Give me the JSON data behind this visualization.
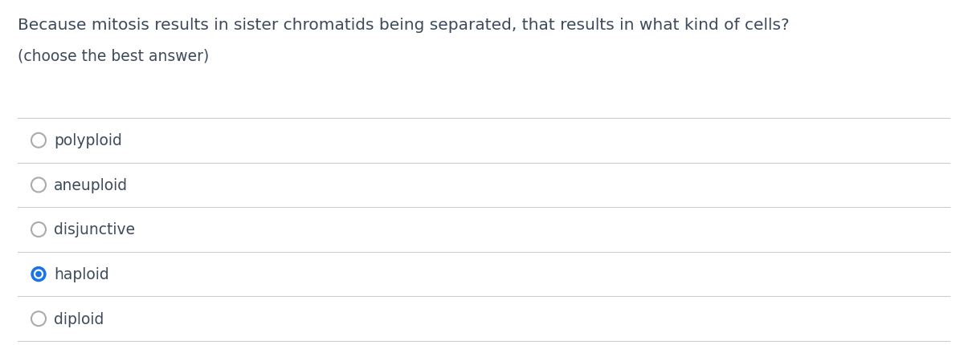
{
  "title_line1": "Because mitosis results in sister chromatids being separated, that results in what kind of cells?",
  "subtitle": "(choose the best answer)",
  "options": [
    "polyploid",
    "aneuploid",
    "disjunctive",
    "haploid",
    "diploid"
  ],
  "selected_index": 3,
  "bg_color": "#ffffff",
  "text_color": "#3d4a5c",
  "line_color": "#cccccc",
  "circle_unsel_color": "#aaaaaa",
  "selected_circle_fill": "#1a73e8",
  "title_fontsize": 14.5,
  "subtitle_fontsize": 13.5,
  "option_fontsize": 13.5,
  "fig_width": 12.0,
  "fig_height": 4.31
}
